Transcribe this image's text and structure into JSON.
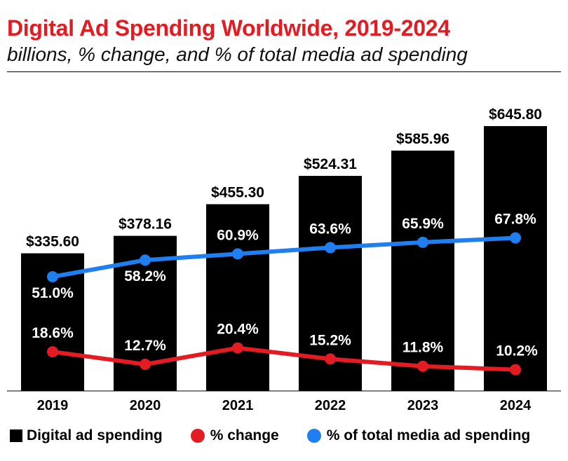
{
  "header": {
    "title": "Digital Ad Spending Worldwide, 2019-2024",
    "subtitle": "billions, % change, and % of total media ad spending"
  },
  "colors": {
    "bar": "#000000",
    "change_line": "#e31b23",
    "share_line": "#1f7ff0",
    "title": "#e31b23"
  },
  "chart_data": {
    "type": "bar",
    "categories": [
      "2019",
      "2020",
      "2021",
      "2022",
      "2023",
      "2024"
    ],
    "series": [
      {
        "name": "Digital ad spending",
        "type": "bar",
        "values": [
          335.6,
          378.16,
          455.3,
          524.31,
          585.96,
          645.8
        ],
        "labels": [
          "$335.60",
          "$378.16",
          "$455.30",
          "$524.31",
          "$585.96",
          "$645.80"
        ]
      },
      {
        "name": "% change",
        "type": "line",
        "values": [
          18.6,
          12.7,
          20.4,
          15.2,
          11.8,
          10.2
        ],
        "labels": [
          "18.6%",
          "12.7%",
          "20.4%",
          "15.2%",
          "11.8%",
          "10.2%"
        ]
      },
      {
        "name": "% of total media ad spending",
        "type": "line",
        "values": [
          51.0,
          58.2,
          60.9,
          63.6,
          65.9,
          67.8
        ],
        "labels": [
          "51.0%",
          "58.2%",
          "60.9%",
          "63.6%",
          "65.9%",
          "67.8%"
        ]
      }
    ],
    "legend_position": "bottom",
    "grid": false
  }
}
